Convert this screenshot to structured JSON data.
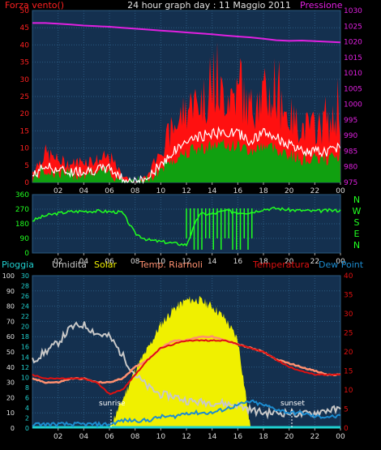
{
  "header": {
    "left": "Forza vento()",
    "center": "24 hour graph day : 11 Maggio 2011",
    "right": "Pressione"
  },
  "labels": {
    "rain": "Pioggia",
    "hum": "Umidita",
    "solar": "Solar",
    "temp_riarnoli": "Temp. Riarnoli",
    "temp": "Temperatura",
    "dew": "Dew Point",
    "sunrise": "sunrise",
    "sunset": "sunset"
  },
  "compass": [
    "N",
    "W",
    "S",
    "E",
    "N"
  ],
  "colors": {
    "wind_gust": "#ff1010",
    "wind_avg": "#ffffff",
    "wind_green": "#10a010",
    "pressure": "#e020e0",
    "dir": "#20ff20",
    "solar": "#f0f000",
    "hum": "#c8c8c8",
    "temp": "#e01010",
    "temp_riarnoli": "#ff9070",
    "dew": "#1c8cd0",
    "rain": "#20d0d0"
  },
  "x_ticks": [
    "02",
    "04",
    "06",
    "08",
    "10",
    "12",
    "14",
    "16",
    "18",
    "20",
    "22",
    "00"
  ],
  "chart_data": [
    {
      "type": "line",
      "title": "24 hour graph day : 11 Maggio 2011",
      "x_hours": [
        0,
        1,
        2,
        3,
        4,
        5,
        6,
        7,
        8,
        9,
        10,
        11,
        12,
        13,
        14,
        15,
        16,
        17,
        18,
        19,
        20,
        21,
        22,
        23,
        24
      ],
      "left_axis": {
        "label": "Forza vento()",
        "ylim": [
          0,
          50
        ],
        "ticks": [
          0,
          5,
          10,
          15,
          20,
          25,
          30,
          35,
          40,
          45,
          50
        ]
      },
      "right_axis": {
        "label": "Pressione",
        "ylim": [
          975,
          1030
        ],
        "ticks": [
          975,
          980,
          985,
          990,
          995,
          1000,
          1005,
          1010,
          1015,
          1020,
          1025,
          1030
        ]
      },
      "series": [
        {
          "name": "Pressione",
          "axis": "right",
          "values": [
            1026,
            1026,
            1025.8,
            1025.5,
            1025.2,
            1025,
            1024.8,
            1024.5,
            1024.2,
            1023.9,
            1023.6,
            1023.3,
            1023,
            1022.7,
            1022.4,
            1022,
            1021.7,
            1021.4,
            1021,
            1020.5,
            1020.3,
            1020.4,
            1020.2,
            1020,
            1019.8
          ]
        },
        {
          "name": "Forza vento()",
          "axis": "left",
          "values": [
            3,
            8,
            6,
            5,
            6,
            6,
            7,
            2,
            0,
            2,
            9,
            15,
            20,
            22,
            24,
            24,
            24,
            20,
            24,
            22,
            18,
            15,
            15,
            15,
            18
          ]
        }
      ]
    },
    {
      "type": "line",
      "ylim": [
        0,
        360
      ],
      "y_ticks": [
        0,
        90,
        180,
        270,
        360
      ],
      "x_hours": [
        0,
        1,
        2,
        3,
        4,
        5,
        6,
        7,
        8,
        9,
        10,
        11,
        12,
        13,
        14,
        15,
        16,
        17,
        18,
        19,
        20,
        21,
        22,
        23,
        24
      ],
      "values": [
        200,
        230,
        245,
        255,
        258,
        258,
        255,
        250,
        120,
        80,
        70,
        60,
        50,
        240,
        240,
        260,
        250,
        250,
        270,
        275,
        265,
        262,
        258,
        262,
        262
      ]
    },
    {
      "type": "line",
      "left_axis": {
        "ylim": [
          0,
          100
        ],
        "ticks": [
          0,
          10,
          20,
          30,
          40,
          50,
          60,
          70,
          80,
          90,
          100
        ]
      },
      "left_axis2": {
        "ylim": [
          0,
          30
        ],
        "ticks": [
          0,
          2,
          4,
          6,
          8,
          10,
          12,
          14,
          16,
          18,
          20,
          22,
          24,
          26,
          28,
          30
        ]
      },
      "right_axis": {
        "ylim": [
          0,
          40
        ],
        "ticks": [
          0,
          5,
          10,
          15,
          20,
          25,
          30,
          35,
          40
        ]
      },
      "x_hours": [
        0,
        1,
        2,
        3,
        4,
        5,
        6,
        7,
        8,
        9,
        10,
        11,
        12,
        13,
        14,
        15,
        16,
        17,
        18,
        19,
        20,
        21,
        22,
        23,
        24
      ],
      "series": [
        {
          "name": "Umidita",
          "axis": "left",
          "values": [
            44,
            50,
            56,
            66,
            68,
            62,
            60,
            48,
            35,
            27,
            22,
            21,
            18,
            17,
            17,
            16,
            15,
            12,
            10,
            10,
            10,
            9,
            10,
            12,
            12
          ]
        },
        {
          "name": "Solar",
          "axis": "left",
          "values": [
            0,
            0,
            0,
            0,
            0,
            0,
            0,
            18,
            38,
            52,
            68,
            78,
            84,
            84,
            80,
            72,
            58,
            0,
            0,
            0,
            0,
            0,
            0,
            0,
            0
          ]
        },
        {
          "name": "Temp. Riarnoli",
          "axis": "right",
          "values": [
            13,
            12,
            12,
            13,
            13,
            12,
            12,
            13,
            16,
            18,
            21,
            23,
            23,
            24,
            24,
            23,
            22,
            21,
            20,
            18,
            17,
            16,
            15,
            14,
            14
          ]
        },
        {
          "name": "Temperatura",
          "axis": "right",
          "values": [
            14,
            13,
            13,
            13,
            13,
            12,
            9,
            10,
            14,
            18,
            21,
            22,
            23,
            23,
            23,
            23,
            22,
            21,
            20,
            18,
            16,
            15,
            14,
            14,
            14
          ]
        },
        {
          "name": "Dew Point",
          "axis": "right",
          "values": [
            1,
            1,
            1,
            1,
            1,
            1,
            1,
            2,
            2,
            2,
            3,
            3,
            4,
            4,
            4,
            5,
            6,
            7,
            6,
            5,
            4,
            4,
            3,
            3,
            3
          ]
        },
        {
          "name": "Pioggia",
          "axis": "left",
          "values": [
            0,
            0,
            0,
            0,
            0,
            0,
            0,
            0,
            0,
            0,
            0,
            0,
            0,
            0,
            0,
            0,
            0,
            0,
            0,
            0,
            0,
            0,
            0,
            0,
            0
          ]
        }
      ]
    }
  ]
}
